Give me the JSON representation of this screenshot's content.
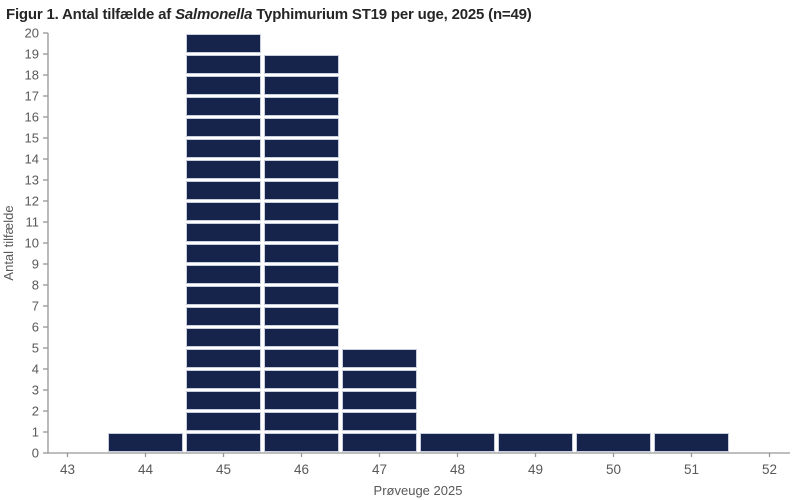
{
  "title": {
    "prefix": "Figur 1. Antal tilfælde af ",
    "italic": "Salmonella",
    "suffix": " Typhimurium ST19 per uge, 2025 (n=49)"
  },
  "chart_data": {
    "type": "bar",
    "style": "unit-stacked-case-histogram",
    "categories": [
      43,
      44,
      45,
      46,
      47,
      48,
      49,
      50,
      51,
      52
    ],
    "values": [
      0,
      1,
      20,
      19,
      5,
      1,
      1,
      1,
      1,
      0
    ],
    "total_n": 49,
    "title": "Figur 1. Antal tilfælde af Salmonella Typhimurium ST19 per uge, 2025 (n=49)",
    "xlabel": "Prøveuge 2025",
    "ylabel": "Antal tilfælde",
    "ylim": [
      0,
      20
    ],
    "ytick_step": 1,
    "grid": false,
    "legend": "none",
    "colors": {
      "bar_fill": "#16234a",
      "block_border": "#c9cede",
      "axis_line": "#969696",
      "tick_label": "#595959",
      "title_text": "#262626"
    }
  }
}
